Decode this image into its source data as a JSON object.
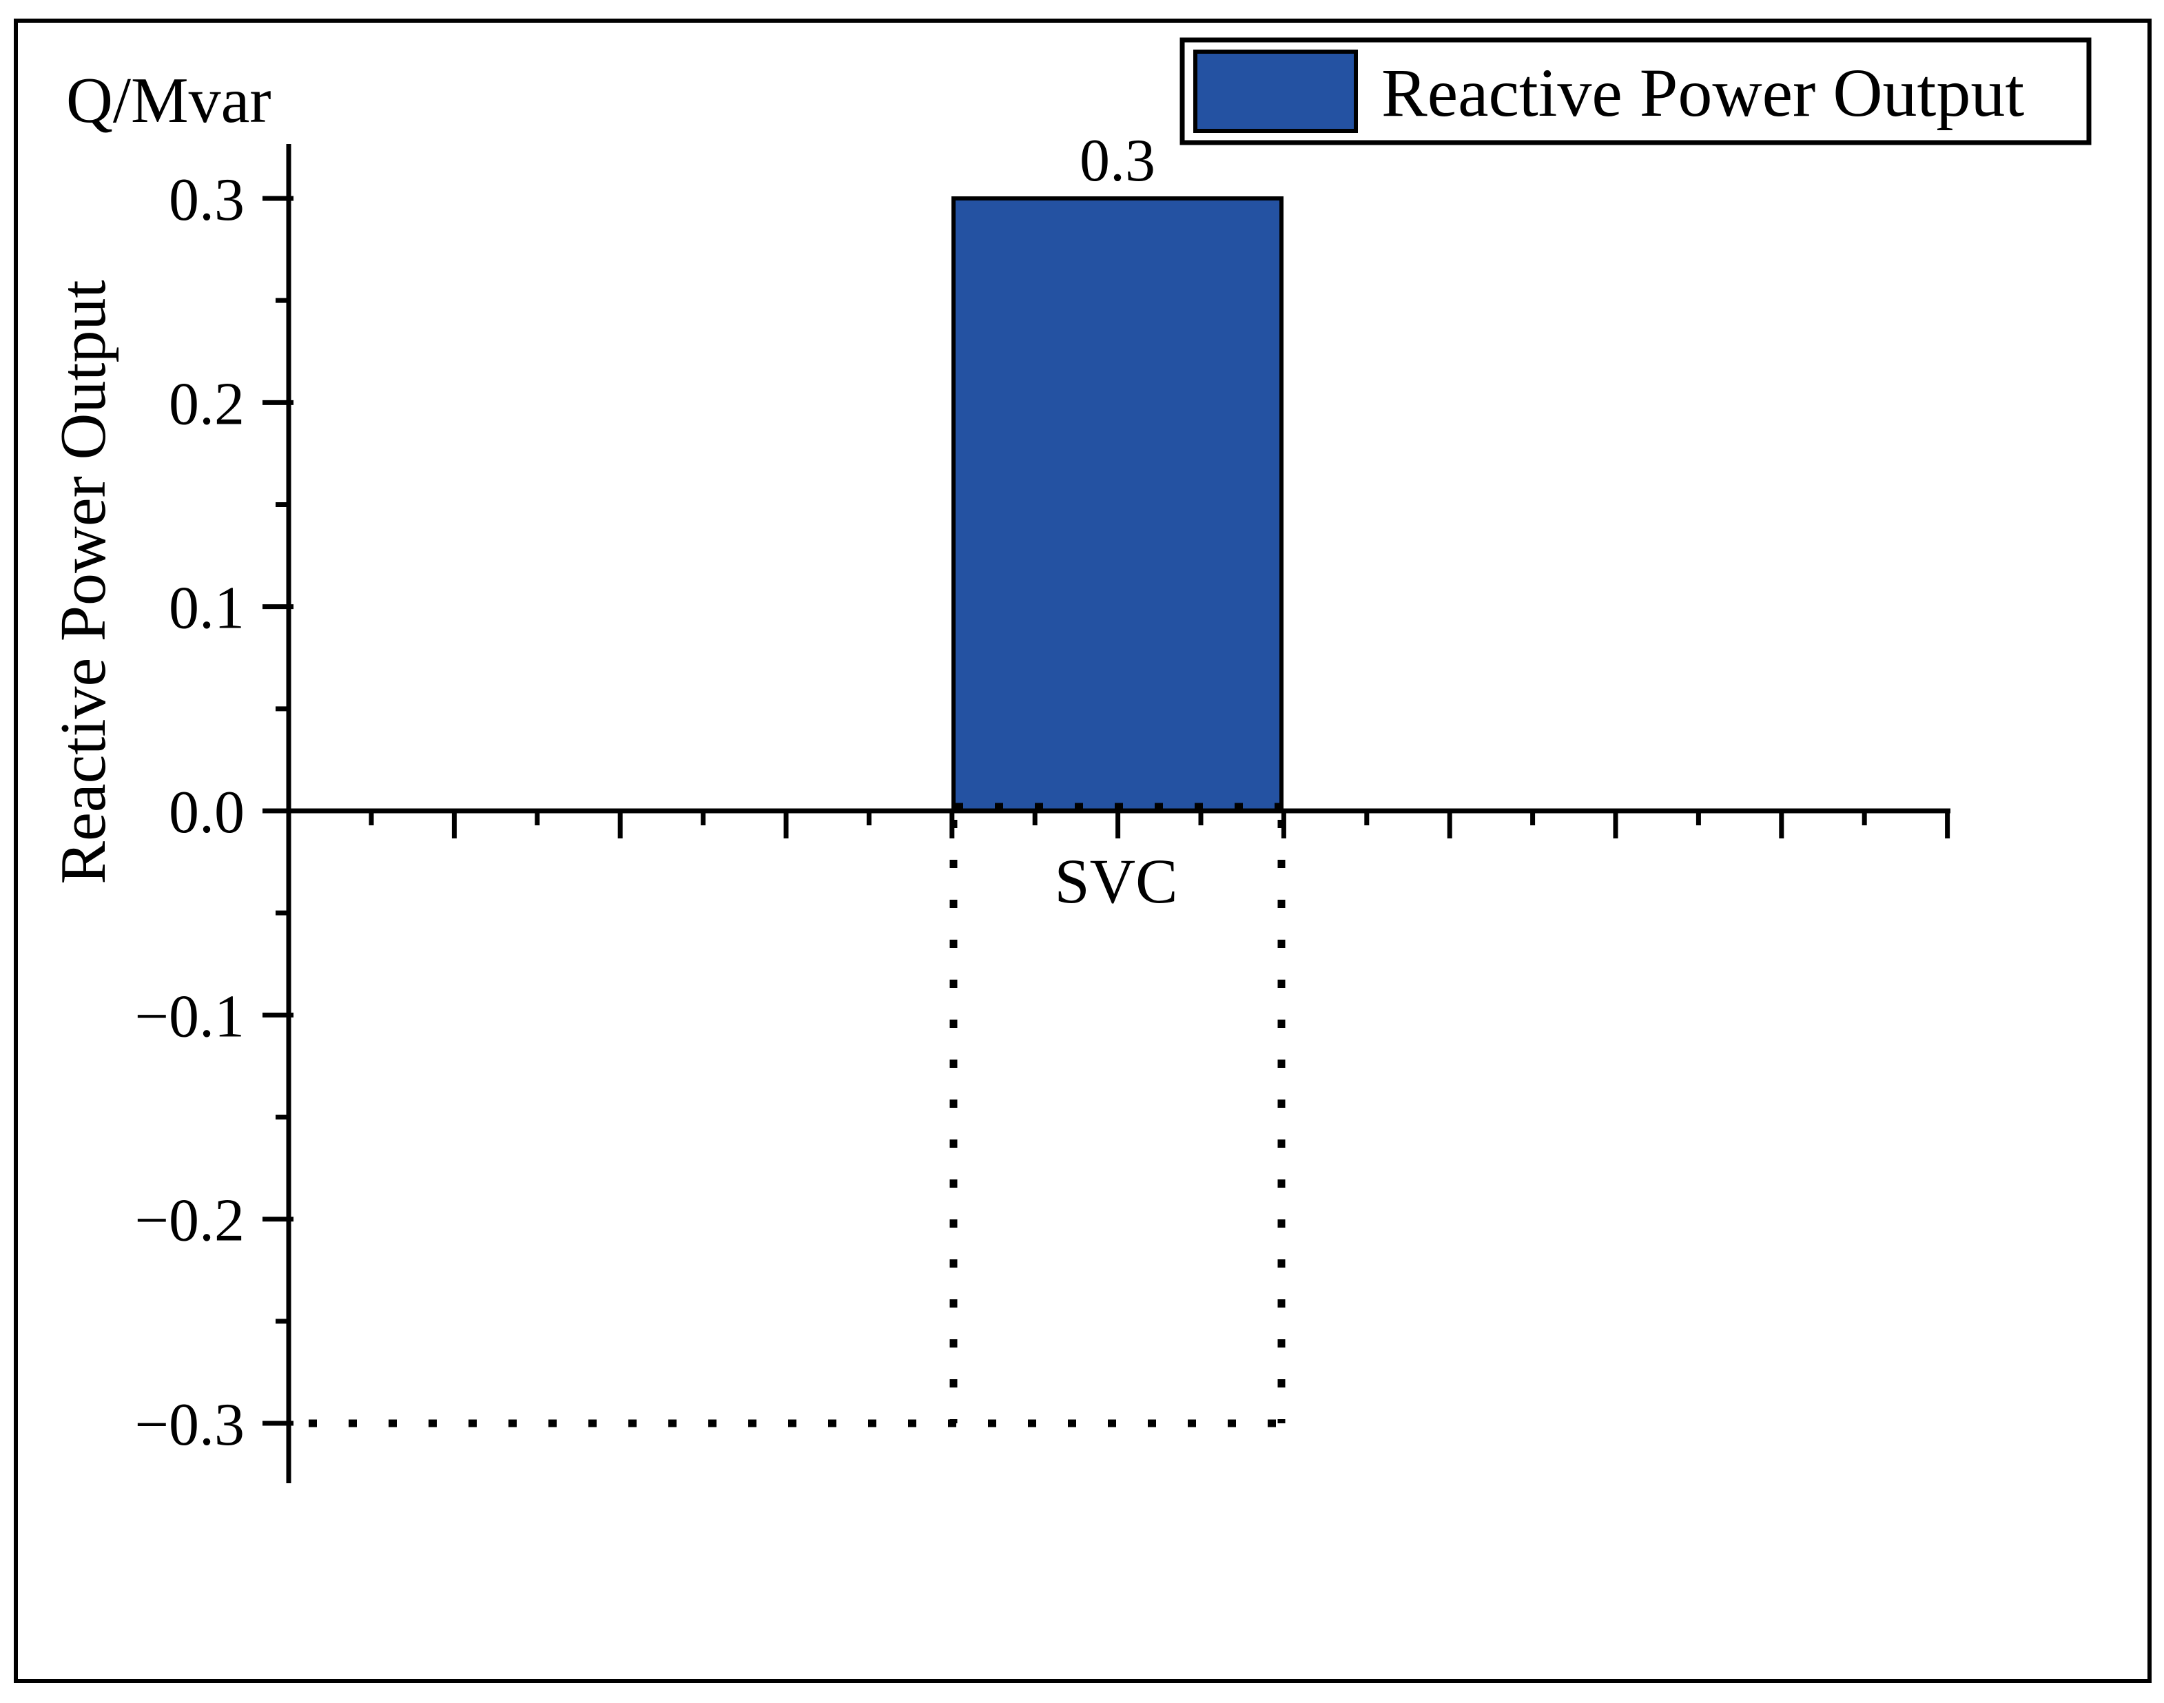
{
  "figure": {
    "y_axis_unit_label": "Q/Mvar",
    "y_axis_title": "Reactive Power Output",
    "legend": {
      "label": "Reactive Power Output",
      "swatch_color": "#2452A2"
    },
    "category_label": "SVC",
    "bar_value_label": "0.3",
    "axis_color": "#000000"
  },
  "chart_data": {
    "type": "bar",
    "title": "",
    "categories": [
      "SVC"
    ],
    "series": [
      {
        "name": "Reactive Power Output",
        "values": [
          0.3
        ]
      }
    ],
    "value_labels": [
      "0.3"
    ],
    "xlabel": "",
    "ylabel": "Reactive Power Output",
    "y_unit_label": "Q/Mvar",
    "ylim": [
      -0.33,
      0.33
    ],
    "y_ticks": [
      0.3,
      0.2,
      0.1,
      0.0,
      -0.1,
      -0.2,
      -0.3
    ],
    "y_tick_labels": [
      "0.3",
      "0.2",
      "0.1",
      "0.0",
      "−0.1",
      "−0.2",
      "−0.3"
    ],
    "y_minor_tick_step": 0.05,
    "x_tick_labels_shown": false,
    "grid": false,
    "legend_position": "top-right",
    "bar_color": "#2452A2",
    "bar_border_color": "#000000",
    "annotations": [
      {
        "type": "dotted_rectangle",
        "x_category": "SVC",
        "y_top": 0,
        "y_bottom": -0.3,
        "bottom_line_extends_left_to_y_axis": true
      }
    ]
  }
}
